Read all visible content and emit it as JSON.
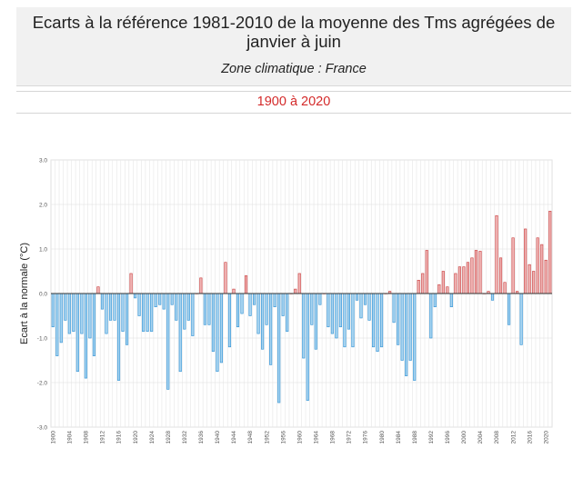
{
  "header": {
    "title": "Ecarts à la référence 1981-2010 de la moyenne des Tms agrégées de janvier à juin",
    "subtitle": "Zone climatique : France",
    "period": "1900 à 2020"
  },
  "colors": {
    "positive_fill": "#f0b5b5",
    "positive_stroke": "#c83a3a",
    "negative_fill": "#a8d4f0",
    "negative_stroke": "#2a8fd4",
    "grid": "#e6e6e6",
    "zero_line": "#333333"
  },
  "chart_data": {
    "type": "bar",
    "title": "Ecarts à la référence 1981-2010 de la moyenne des Tms agrégées de janvier à juin",
    "ylabel": "Ecart à la normale (°C)",
    "xlabel": "",
    "ylim": [
      -3.0,
      3.0
    ],
    "yticks": [
      "3.0",
      "2.0",
      "1.0",
      "0.0",
      "-1.0",
      "-2.0",
      "-3.0"
    ],
    "ytick_values": [
      3,
      2,
      1,
      0,
      -1,
      -2,
      -3
    ],
    "grid": true,
    "x_start": 1900,
    "x_end": 2020,
    "xtick_step": 4,
    "values": [
      -0.75,
      -1.4,
      -1.1,
      -0.6,
      -0.9,
      -0.85,
      -1.75,
      -0.9,
      -1.9,
      -1.0,
      -1.4,
      0.15,
      -0.35,
      -0.9,
      -0.6,
      -0.6,
      -1.95,
      -0.85,
      -1.15,
      0.45,
      -0.1,
      -0.5,
      -0.85,
      -0.85,
      -0.85,
      -0.3,
      -0.25,
      -0.35,
      -2.15,
      -0.25,
      -0.6,
      -1.75,
      -0.8,
      -0.6,
      -0.95,
      0.0,
      0.35,
      -0.7,
      -0.7,
      -1.3,
      -1.75,
      -1.55,
      0.7,
      -1.2,
      0.1,
      -0.75,
      -0.45,
      0.4,
      -0.5,
      -0.25,
      -0.9,
      -1.25,
      -0.7,
      -1.6,
      -0.3,
      -2.45,
      -0.5,
      -0.85,
      0.0,
      0.1,
      0.45,
      -1.45,
      -2.4,
      -0.7,
      -1.25,
      -0.25,
      0.0,
      -0.75,
      -0.9,
      -1.0,
      -0.75,
      -1.2,
      -0.8,
      -1.2,
      -0.15,
      -0.55,
      -0.25,
      -0.6,
      -1.2,
      -1.3,
      -1.2,
      0.0,
      0.05,
      -0.65,
      -1.15,
      -1.5,
      -1.85,
      -1.5,
      -1.95,
      0.3,
      0.45,
      0.97,
      -1.0,
      -0.3,
      0.2,
      0.5,
      0.15,
      -0.3,
      0.45,
      0.6,
      0.6,
      0.7,
      0.8,
      0.97,
      0.95,
      0.0,
      0.05,
      -0.15,
      1.75,
      0.8,
      0.25,
      -0.7,
      1.25,
      0.05,
      -1.15,
      1.45,
      0.65,
      0.5,
      1.25,
      1.1,
      0.75,
      1.85
    ]
  }
}
